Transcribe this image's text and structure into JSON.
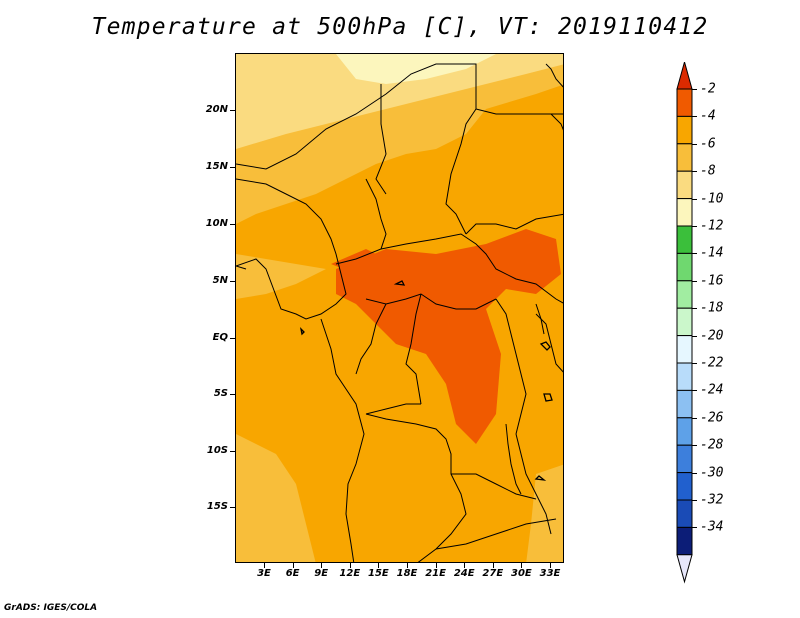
{
  "title": "Temperature at 500hPa [C], VT: 2019110412",
  "credit": "GrADS: IGES/COLA",
  "map": {
    "lat_labels": [
      "20N",
      "15N",
      "10N",
      "5N",
      "EQ",
      "5S",
      "10S",
      "15S"
    ],
    "lon_labels": [
      "3E",
      "6E",
      "9E",
      "12E",
      "15E",
      "18E",
      "21E",
      "24E",
      "27E",
      "30E",
      "33E"
    ]
  },
  "colorbar": {
    "labels": [
      "-2",
      "-4",
      "-6",
      "-8",
      "-10",
      "-12",
      "-14",
      "-16",
      "-18",
      "-20",
      "-22",
      "-24",
      "-26",
      "-28",
      "-30",
      "-32",
      "-34"
    ],
    "colors": [
      "#dc2a00",
      "#f05a00",
      "#f8a600",
      "#f8be3a",
      "#fadb80",
      "#fcf6bd",
      "#3bbf3b",
      "#6fd86f",
      "#a1eda1",
      "#cbf7cb",
      "#e6f7ff",
      "#b8dcfa",
      "#8cc0f2",
      "#5ea1e8",
      "#3d7fdc",
      "#2160ce",
      "#1a4bb6",
      "#0c1d77"
    ],
    "top_arrow_color": "#dc2a00",
    "bottom_arrow_color": "#e6e6fa"
  }
}
